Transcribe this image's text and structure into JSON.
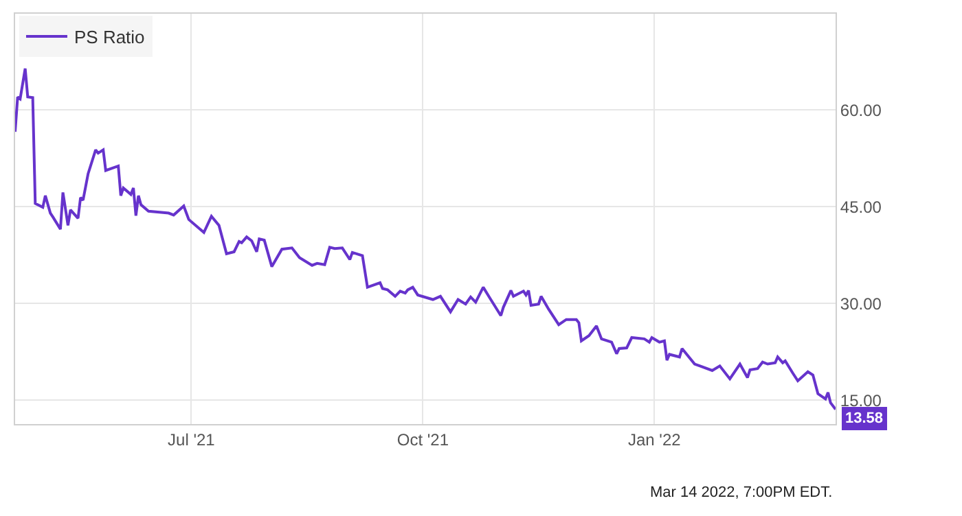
{
  "chart_data": {
    "type": "line",
    "legend": "top left",
    "grid": true,
    "marker": "none",
    "line_style": "solid",
    "xlim": [
      "2021-04-22",
      "2022-03-14"
    ],
    "ylim": [
      11.3,
      74.9
    ],
    "xticks": [
      {
        "value": "2021-07-01",
        "label": "Jul '21"
      },
      {
        "value": "2021-10-01",
        "label": "Oct '21"
      },
      {
        "value": "2022-01-01",
        "label": "Jan '22"
      }
    ],
    "yticks": [
      {
        "value": 15,
        "label": "15.00"
      },
      {
        "value": 30,
        "label": "30.00"
      },
      {
        "value": 45,
        "label": "45.00"
      },
      {
        "value": 60,
        "label": "60.00"
      }
    ],
    "x": [
      "2021-04-22",
      "2021-04-23",
      "2021-04-24",
      "2021-04-26",
      "2021-04-27",
      "2021-04-29",
      "2021-04-30",
      "2021-05-03",
      "2021-05-04",
      "2021-05-06",
      "2021-05-07",
      "2021-05-10",
      "2021-05-11",
      "2021-05-13",
      "2021-05-14",
      "2021-05-17",
      "2021-05-18",
      "2021-05-19",
      "2021-05-21",
      "2021-05-24",
      "2021-05-25",
      "2021-05-27",
      "2021-05-28",
      "2021-06-02",
      "2021-06-03",
      "2021-06-04",
      "2021-06-07",
      "2021-06-08",
      "2021-06-09",
      "2021-06-10",
      "2021-06-11",
      "2021-06-14",
      "2021-06-22",
      "2021-06-24",
      "2021-06-28",
      "2021-06-30",
      "2021-07-06",
      "2021-07-09",
      "2021-07-12",
      "2021-07-15",
      "2021-07-18",
      "2021-07-20",
      "2021-07-21",
      "2021-07-23",
      "2021-07-25",
      "2021-07-27",
      "2021-07-28",
      "2021-07-30",
      "2021-08-02",
      "2021-08-06",
      "2021-08-10",
      "2021-08-13",
      "2021-08-18",
      "2021-08-20",
      "2021-08-23",
      "2021-08-25",
      "2021-08-27",
      "2021-08-30",
      "2021-09-02",
      "2021-09-03",
      "2021-09-07",
      "2021-09-09",
      "2021-09-14",
      "2021-09-15",
      "2021-09-17",
      "2021-09-20",
      "2021-09-22",
      "2021-09-24",
      "2021-09-25",
      "2021-09-27",
      "2021-09-29",
      "2021-10-05",
      "2021-10-08",
      "2021-10-12",
      "2021-10-15",
      "2021-10-18",
      "2021-10-20",
      "2021-10-22",
      "2021-10-25",
      "2021-10-28",
      "2021-11-01",
      "2021-11-02",
      "2021-11-05",
      "2021-11-06",
      "2021-11-10",
      "2021-11-11",
      "2021-11-12",
      "2021-11-13",
      "2021-11-16",
      "2021-11-17",
      "2021-11-20",
      "2021-11-24",
      "2021-11-27",
      "2021-12-01",
      "2021-12-02",
      "2021-12-03",
      "2021-12-06",
      "2021-12-09",
      "2021-12-11",
      "2021-12-15",
      "2021-12-17",
      "2021-12-18",
      "2021-12-21",
      "2021-12-23",
      "2021-12-28",
      "2021-12-30",
      "2021-12-31",
      "2022-01-03",
      "2022-01-05",
      "2022-01-06",
      "2022-01-07",
      "2022-01-11",
      "2022-01-12",
      "2022-01-17",
      "2022-01-24",
      "2022-01-27",
      "2022-01-31",
      "2022-02-04",
      "2022-02-07",
      "2022-02-08",
      "2022-02-11",
      "2022-02-13",
      "2022-02-15",
      "2022-02-18",
      "2022-02-19",
      "2022-02-21",
      "2022-02-22",
      "2022-02-25",
      "2022-02-27",
      "2022-03-03",
      "2022-03-05",
      "2022-03-07",
      "2022-03-10",
      "2022-03-11",
      "2022-03-12",
      "2022-03-14"
    ],
    "series": [
      {
        "name": "PS Ratio",
        "color": "#6633cc",
        "values": [
          56.6,
          62.0,
          61.7,
          66.4,
          62.0,
          61.9,
          45.5,
          44.9,
          46.7,
          44.0,
          43.4,
          41.5,
          47.2,
          42.1,
          44.5,
          43.2,
          46.4,
          46.0,
          50.1,
          53.8,
          53.3,
          53.8,
          50.6,
          51.3,
          46.7,
          47.9,
          46.9,
          47.9,
          43.6,
          46.7,
          45.3,
          44.3,
          44.0,
          43.7,
          45.1,
          43.0,
          41.0,
          43.5,
          42.1,
          37.7,
          38.0,
          39.6,
          39.4,
          40.3,
          39.7,
          38.0,
          40.0,
          39.8,
          35.7,
          38.4,
          38.6,
          37.1,
          35.9,
          36.2,
          36.0,
          38.7,
          38.5,
          38.6,
          36.8,
          37.9,
          37.4,
          32.5,
          33.2,
          32.3,
          32.1,
          31.1,
          31.9,
          31.6,
          32.1,
          32.5,
          31.3,
          30.6,
          31.1,
          28.7,
          30.6,
          29.9,
          31.0,
          30.2,
          32.5,
          30.6,
          28.1,
          29.4,
          32.0,
          31.1,
          31.9,
          31.3,
          32.0,
          29.7,
          29.9,
          31.1,
          29.1,
          26.7,
          27.5,
          27.5,
          27.0,
          24.2,
          25.0,
          26.5,
          24.5,
          24.0,
          22.2,
          23.0,
          23.1,
          24.7,
          24.5,
          24.0,
          24.7,
          24.0,
          24.2,
          21.2,
          22.1,
          21.7,
          23.0,
          20.6,
          19.6,
          20.3,
          18.3,
          20.6,
          18.5,
          19.7,
          19.9,
          20.9,
          20.6,
          20.8,
          21.7,
          20.8,
          21.1,
          19.2,
          18.0,
          19.4,
          18.9,
          16.0,
          15.2,
          16.2,
          14.6,
          13.58
        ]
      }
    ],
    "annotations": [
      {
        "text": "13.58",
        "x": "2022-03-14",
        "y": 13.58
      },
      "Mar 14 2022, 7:00PM EDT."
    ]
  }
}
